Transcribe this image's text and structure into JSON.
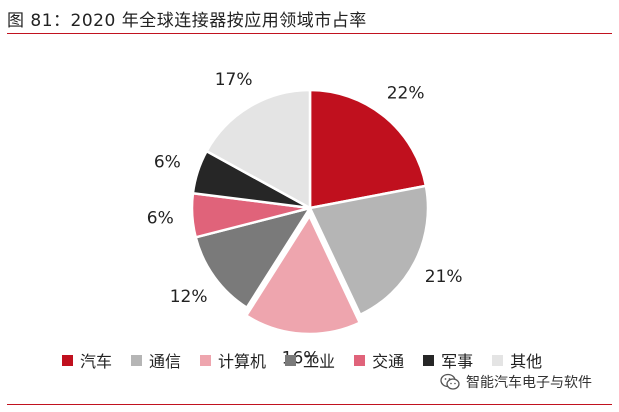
{
  "title": "图 81：2020 年全球连接器按应用领域市占率",
  "watermark": "智能汽车电子与软件",
  "chart_data": {
    "type": "pie",
    "title": "",
    "legend_position": "bottom",
    "slices": [
      {
        "label": "汽车",
        "value": 22,
        "display": "22%",
        "color": "#c0101e"
      },
      {
        "label": "通信",
        "value": 21,
        "display": "21%",
        "color": "#b5b5b5"
      },
      {
        "label": "计算机",
        "value": 16,
        "display": "16%",
        "color": "#eea5ae"
      },
      {
        "label": "工业",
        "value": 12,
        "display": "12%",
        "color": "#7a7a7a"
      },
      {
        "label": "交通",
        "value": 6,
        "display": "6%",
        "color": "#e0637a"
      },
      {
        "label": "军事",
        "value": 6,
        "display": "6%",
        "color": "#262626"
      },
      {
        "label": "其他",
        "value": 17,
        "display": "17%",
        "color": "#e4e4e4"
      }
    ]
  }
}
